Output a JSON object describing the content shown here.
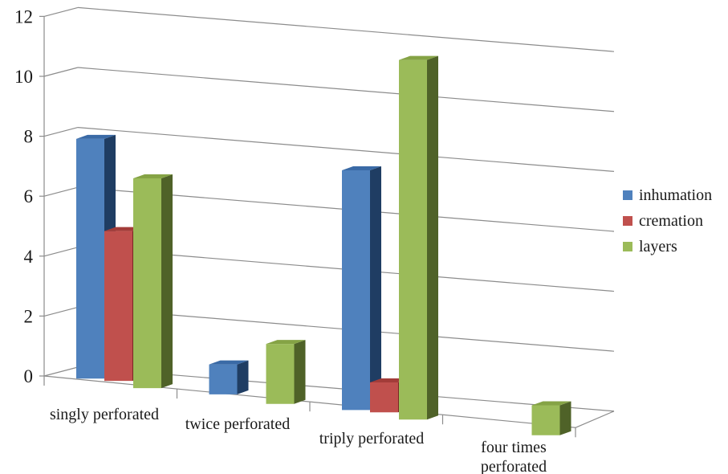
{
  "chart_data": {
    "type": "bar",
    "title": "",
    "xlabel": "",
    "ylabel": "",
    "ylim": [
      0,
      12
    ],
    "y_ticks": [
      "0",
      "2",
      "4",
      "6",
      "8",
      "10",
      "12"
    ],
    "categories": [
      "singly perforated",
      "twice perforated",
      "triply perforated",
      "four times perforated"
    ],
    "category_lines": [
      [
        "singly perforated"
      ],
      [
        "twice perforated"
      ],
      [
        "triply perforated"
      ],
      [
        "four times",
        "perforated"
      ]
    ],
    "series": [
      {
        "name": "inhumation",
        "values": [
          8,
          1,
          8,
          0
        ],
        "color": "#4f81bd",
        "top": "#3a6aa6",
        "side": "#1f3d63"
      },
      {
        "name": "cremation",
        "values": [
          5,
          0,
          1,
          0
        ],
        "color": "#c0504d",
        "top": "#a33c39",
        "side": "#7a2725"
      },
      {
        "name": "layers",
        "values": [
          7,
          2,
          12,
          1
        ],
        "color": "#9bbb59",
        "top": "#85a345",
        "side": "#4f6228"
      }
    ],
    "grid": true,
    "legend_position": "right",
    "axis_color": "#8c8c8c"
  }
}
